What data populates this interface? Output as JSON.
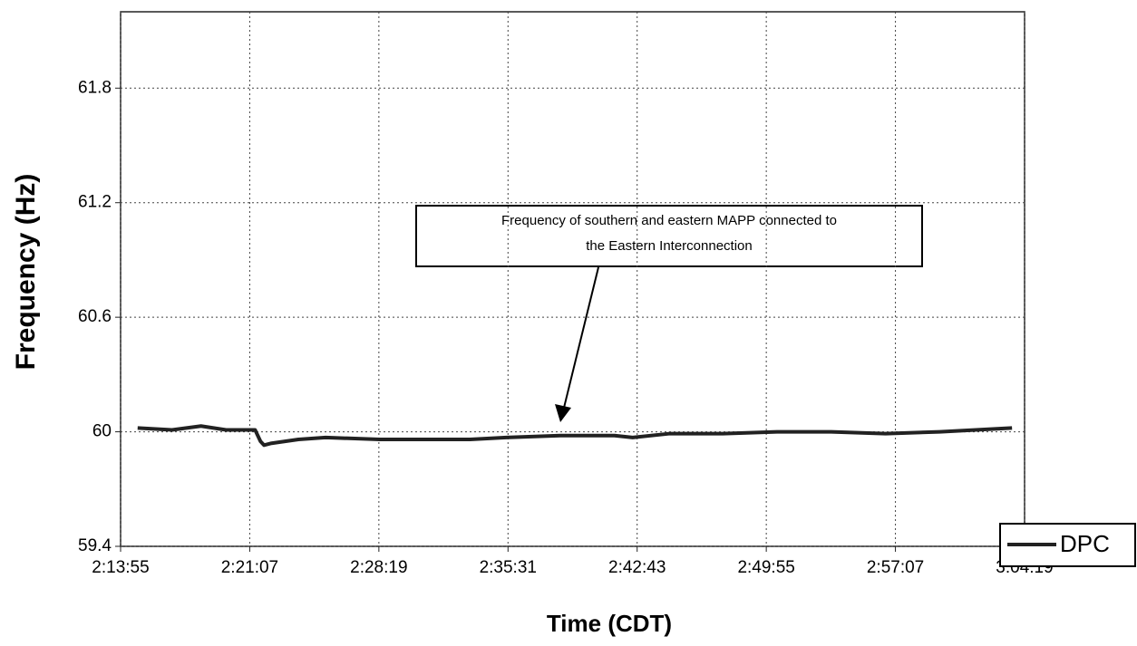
{
  "chart_data": {
    "type": "line",
    "xlabel": "Time (CDT)",
    "ylabel": "Frequency (Hz)",
    "annotation": [
      "Frequency of  southern and eastern MAPP connected to",
      "the Eastern Interconnection"
    ],
    "x": [
      8092,
      8207,
      8304,
      8388,
      8485,
      8503,
      8515,
      8540,
      8630,
      8721,
      8902,
      9083,
      9204,
      9325,
      9506,
      9687,
      9748,
      9869,
      10050,
      10231,
      10412,
      10594,
      10775,
      11017
    ],
    "series": [
      {
        "name": "DPC",
        "color": "#222222",
        "values": [
          60.02,
          60.01,
          60.03,
          60.01,
          60.01,
          59.95,
          59.93,
          59.94,
          59.96,
          59.97,
          59.96,
          59.96,
          59.96,
          59.97,
          59.98,
          59.98,
          59.97,
          59.99,
          59.99,
          60.0,
          60.0,
          59.99,
          60.0,
          60.02
        ]
      }
    ],
    "xlim": [
      8035,
      11059
    ],
    "xticks": [
      {
        "value": 8035,
        "label": "2:13:55"
      },
      {
        "value": 8467,
        "label": "2:21:07"
      },
      {
        "value": 8899,
        "label": "2:28:19"
      },
      {
        "value": 9331,
        "label": "2:35:31"
      },
      {
        "value": 9763,
        "label": "2:42:43"
      },
      {
        "value": 10195,
        "label": "2:49:55"
      },
      {
        "value": 10627,
        "label": "2:57:07"
      },
      {
        "value": 11059,
        "label": "3:04:19"
      }
    ],
    "ylim": [
      59.4,
      62.2
    ],
    "yticks": [
      59.4,
      60,
      60.6,
      61.2,
      61.8
    ],
    "grid": true,
    "legend": "lower right"
  }
}
